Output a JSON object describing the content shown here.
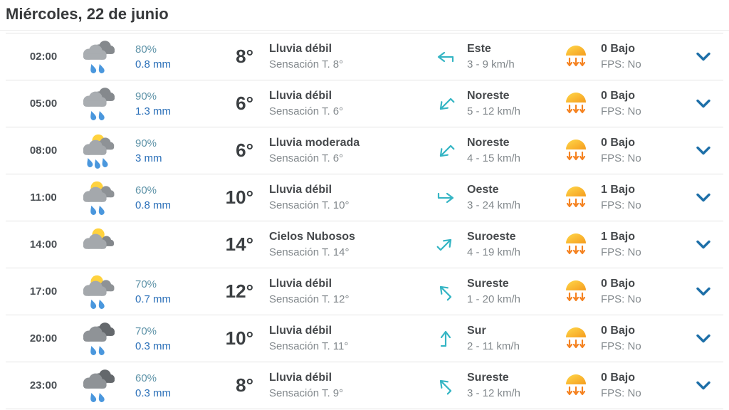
{
  "page": {
    "title": "Miércoles, 22 de junio"
  },
  "colors": {
    "accent_teal_arrow": "#35b5c4",
    "precip_prob_teal": "#5e93a8",
    "precip_mm_blue": "#2a6fb8",
    "chevron_blue": "#1d6fa8",
    "uv_orange": "#f58220",
    "sun_yellow": "#ffd23e",
    "text_dark": "#46494c",
    "text_gray": "#82888c",
    "row_border": "#e4e4e4"
  },
  "icons": {
    "weather": "weather-icon",
    "wind": "wind-direction-arrow-icon",
    "uv": "uv-radiation-icon",
    "expand": "chevron-down-icon"
  },
  "rows": [
    {
      "time": "02:00",
      "icon": "rain",
      "precip_prob": "80%",
      "precip_mm": "0.8 mm",
      "temp": "8°",
      "condition": "Lluvia débil",
      "feels_like": "Sensación T. 8°",
      "wind_dir": "Este",
      "wind_speed": "3 - 9 km/h",
      "wind_deg": 180,
      "uv_index": "0 Bajo",
      "fps": "FPS: No"
    },
    {
      "time": "05:00",
      "icon": "rain",
      "precip_prob": "90%",
      "precip_mm": "1.3 mm",
      "temp": "6°",
      "condition": "Lluvia débil",
      "feels_like": "Sensación T. 6°",
      "wind_dir": "Noreste",
      "wind_speed": "5 - 12 km/h",
      "wind_deg": 135,
      "uv_index": "0 Bajo",
      "fps": "FPS: No"
    },
    {
      "time": "08:00",
      "icon": "sun-rain-heavy",
      "precip_prob": "90%",
      "precip_mm": "3 mm",
      "temp": "6°",
      "condition": "Lluvia moderada",
      "feels_like": "Sensación T. 6°",
      "wind_dir": "Noreste",
      "wind_speed": "4 - 15 km/h",
      "wind_deg": 135,
      "uv_index": "0 Bajo",
      "fps": "FPS: No"
    },
    {
      "time": "11:00",
      "icon": "sun-rain",
      "precip_prob": "60%",
      "precip_mm": "0.8 mm",
      "temp": "10°",
      "condition": "Lluvia débil",
      "feels_like": "Sensación T. 10°",
      "wind_dir": "Oeste",
      "wind_speed": "3 - 24 km/h",
      "wind_deg": 0,
      "uv_index": "1 Bajo",
      "fps": "FPS: No"
    },
    {
      "time": "14:00",
      "icon": "sun-cloud",
      "precip_prob": "",
      "precip_mm": "",
      "temp": "14°",
      "condition": "Cielos Nubosos",
      "feels_like": "Sensación T. 14°",
      "wind_dir": "Suroeste",
      "wind_speed": "4 - 19 km/h",
      "wind_deg": -45,
      "uv_index": "1 Bajo",
      "fps": "FPS: No"
    },
    {
      "time": "17:00",
      "icon": "sun-rain",
      "precip_prob": "70%",
      "precip_mm": "0.7 mm",
      "temp": "12°",
      "condition": "Lluvia débil",
      "feels_like": "Sensación T. 12°",
      "wind_dir": "Sureste",
      "wind_speed": "1 - 20 km/h",
      "wind_deg": -135,
      "uv_index": "0 Bajo",
      "fps": "FPS: No"
    },
    {
      "time": "20:00",
      "icon": "rain-dark",
      "precip_prob": "70%",
      "precip_mm": "0.3 mm",
      "temp": "10°",
      "condition": "Lluvia débil",
      "feels_like": "Sensación T. 11°",
      "wind_dir": "Sur",
      "wind_speed": "2 - 11 km/h",
      "wind_deg": -90,
      "uv_index": "0 Bajo",
      "fps": "FPS: No"
    },
    {
      "time": "23:00",
      "icon": "rain-dark",
      "precip_prob": "60%",
      "precip_mm": "0.3 mm",
      "temp": "8°",
      "condition": "Lluvia débil",
      "feels_like": "Sensación T. 9°",
      "wind_dir": "Sureste",
      "wind_speed": "3 - 12 km/h",
      "wind_deg": -135,
      "uv_index": "0 Bajo",
      "fps": "FPS: No"
    }
  ]
}
